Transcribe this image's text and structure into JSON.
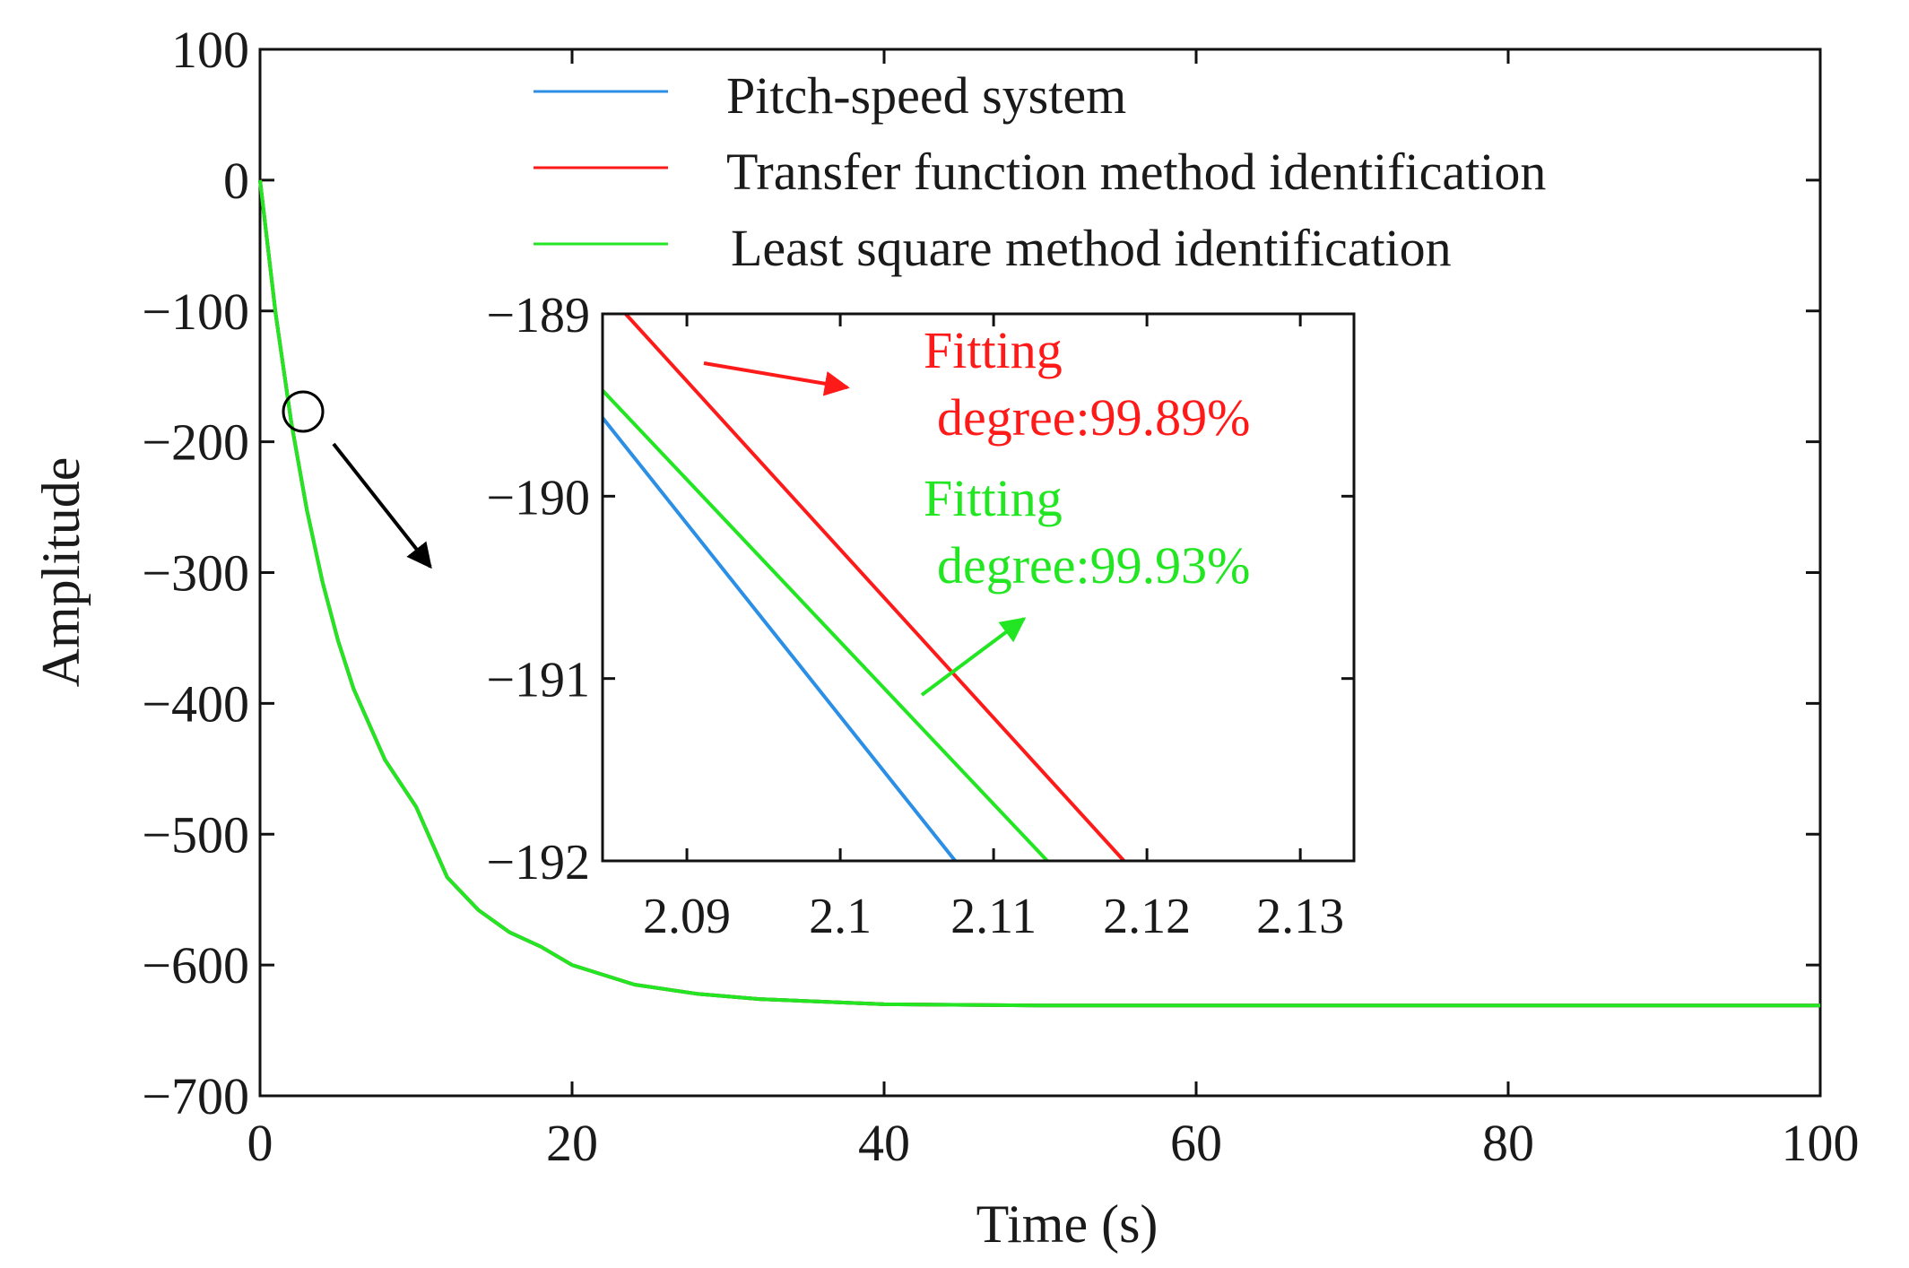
{
  "chart_data": {
    "type": "line",
    "title": "",
    "xlabel": "Time (s)",
    "ylabel": "Amplitude",
    "xlim": [
      0,
      100
    ],
    "ylim": [
      -700,
      100
    ],
    "xticks": [
      0,
      20,
      40,
      60,
      80,
      100
    ],
    "yticks": [
      100,
      0,
      -100,
      -200,
      -300,
      -400,
      -500,
      -600,
      -700
    ],
    "xtick_labels": [
      "0",
      "20",
      "40",
      "60",
      "80",
      "100"
    ],
    "ytick_labels": [
      "100",
      "0",
      "−100",
      "−200",
      "−300",
      "−400",
      "−500",
      "−600",
      "−700"
    ],
    "legend_position": "top",
    "series": [
      {
        "name": "Pitch-speed system",
        "color": "#2b8fe6",
        "x": [
          0,
          1,
          2,
          3,
          4,
          5,
          6,
          8,
          10,
          12,
          14,
          16,
          18,
          20,
          24,
          28,
          32,
          36,
          40,
          50,
          60,
          70,
          80,
          90,
          100
        ],
        "y": [
          0,
          -102,
          -185,
          -252,
          -307,
          -352,
          -389,
          -443,
          -479,
          -533,
          -558,
          -575,
          -586,
          -600,
          -615,
          -622,
          -626,
          -628,
          -630,
          -631,
          -631,
          -631,
          -631,
          -631,
          -631
        ]
      },
      {
        "name": "Transfer function method identification",
        "color": "#ff1a1a",
        "x": [
          0,
          1,
          2,
          3,
          4,
          5,
          6,
          8,
          10,
          12,
          14,
          16,
          18,
          20,
          24,
          28,
          32,
          36,
          40,
          50,
          60,
          70,
          80,
          90,
          100
        ],
        "y": [
          0,
          -102,
          -185,
          -252,
          -307,
          -352,
          -389,
          -443,
          -479,
          -533,
          -558,
          -575,
          -586,
          -600,
          -615,
          -622,
          -626,
          -628,
          -630,
          -631,
          -631,
          -631,
          -631,
          -631,
          -631
        ]
      },
      {
        "name": "Least square method identification",
        "color": "#22e622",
        "x": [
          0,
          1,
          2,
          3,
          4,
          5,
          6,
          8,
          10,
          12,
          14,
          16,
          18,
          20,
          24,
          28,
          32,
          36,
          40,
          50,
          60,
          70,
          80,
          90,
          100
        ],
        "y": [
          0,
          -102,
          -185,
          -252,
          -307,
          -352,
          -389,
          -443,
          -479,
          -533,
          -558,
          -575,
          -586,
          -600,
          -615,
          -622,
          -626,
          -628,
          -630,
          -631,
          -631,
          -631,
          -631,
          -631,
          -631
        ]
      }
    ],
    "inset": {
      "xlim": [
        2.0845,
        2.1335
      ],
      "ylim": [
        -192,
        -189
      ],
      "xticks": [
        2.09,
        2.1,
        2.11,
        2.12,
        2.13
      ],
      "yticks": [
        -189,
        -190,
        -191,
        -192
      ],
      "xtick_labels": [
        "2.09",
        "2.1",
        "2.11",
        "2.12",
        "2.13"
      ],
      "ytick_labels": [
        "−189",
        "−190",
        "−191",
        "−192"
      ],
      "series": [
        {
          "name": "Pitch-speed system",
          "color": "#2b8fe6",
          "x": [
            2.0845,
            2.1075
          ],
          "y": [
            -189.57,
            -192
          ]
        },
        {
          "name": "Least square method identification",
          "color": "#22e622",
          "x": [
            2.0845,
            2.1135
          ],
          "y": [
            -189.42,
            -192
          ]
        },
        {
          "name": "Transfer function method identification",
          "color": "#ff1a1a",
          "x": [
            2.086,
            2.1185
          ],
          "y": [
            -189,
            -192
          ]
        }
      ]
    },
    "annotations": [
      {
        "line1": "Fitting",
        "line2": "degree:99.89%",
        "color": "#ff1a1a"
      },
      {
        "line1": "Fitting",
        "line2": "degree:99.93%",
        "color": "#22e622"
      }
    ],
    "zoom_marker": {
      "x": 2.1,
      "y": -190.5
    }
  }
}
